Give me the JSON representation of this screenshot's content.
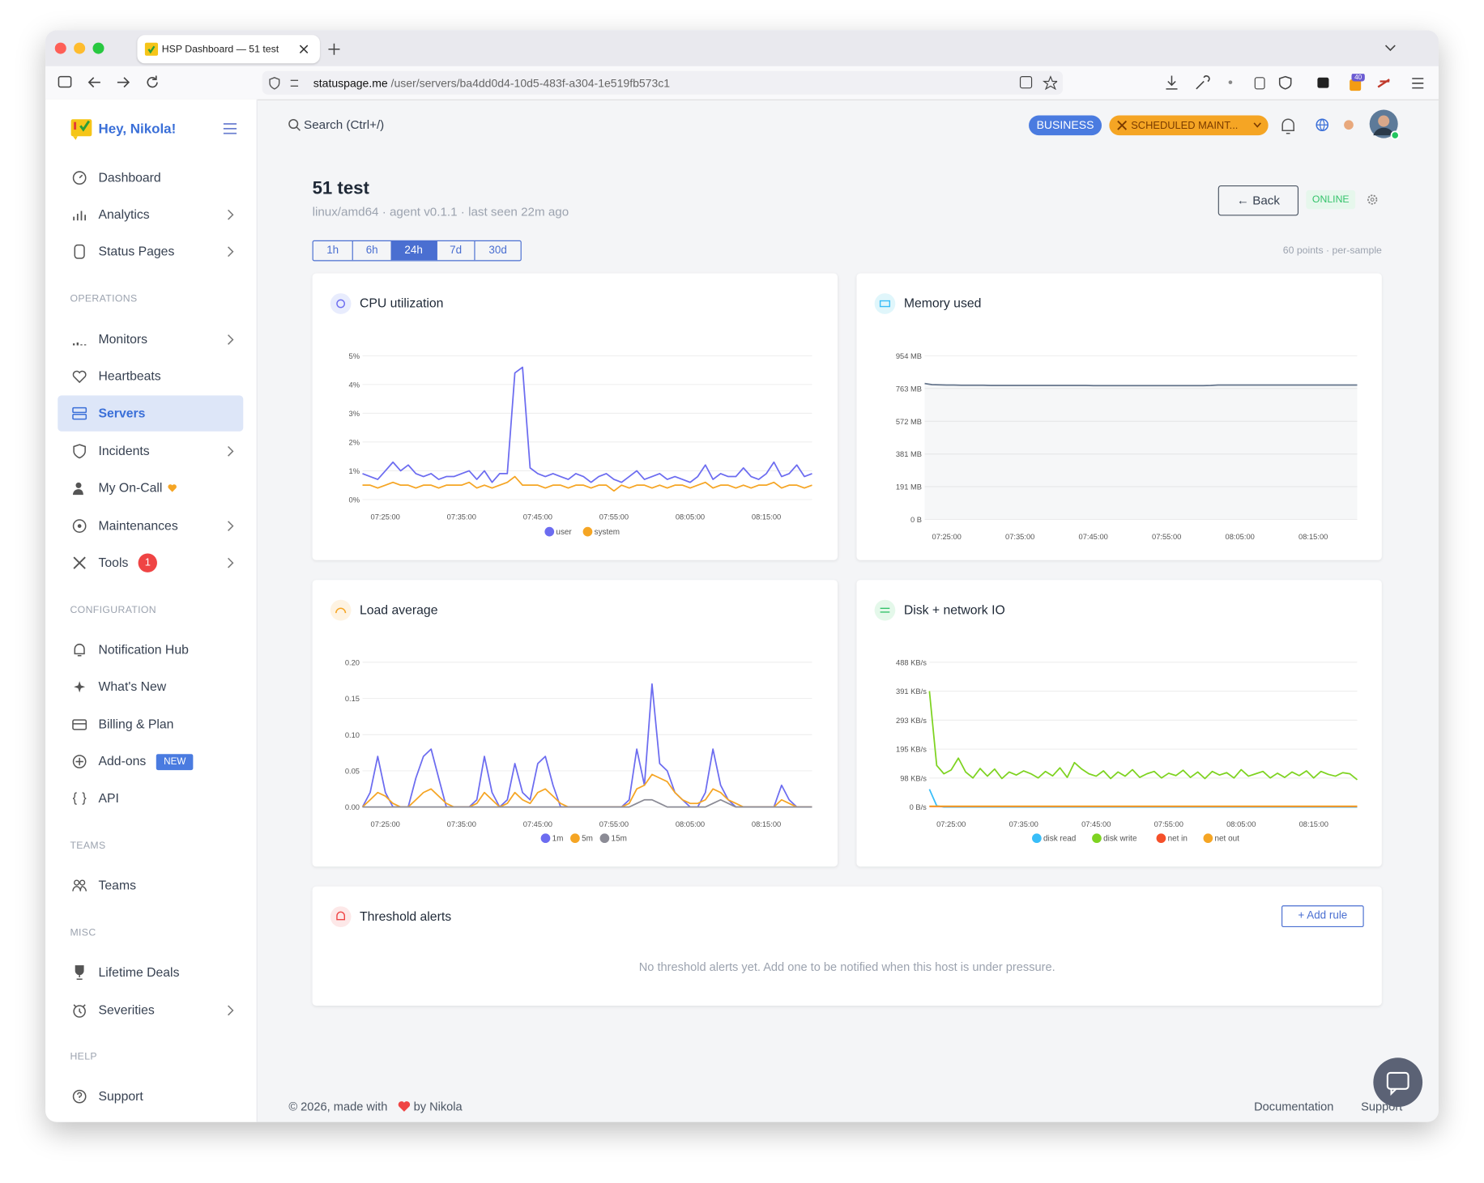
{
  "browser": {
    "tab_title": "HSP Dashboard — 51 test",
    "url_host": "statuspage.me",
    "url_path": "/user/servers/ba4dd0d4-10d5-483f-a304-1e519fb573c1",
    "extension_badge": "40"
  },
  "sidebar": {
    "greeting": "Hey, Nikola!",
    "groups": [
      {
        "items": [
          {
            "label": "Dashboard"
          },
          {
            "label": "Analytics"
          },
          {
            "label": "Status Pages"
          }
        ]
      },
      {
        "heading": "OPERATIONS",
        "items": [
          {
            "label": "Monitors"
          },
          {
            "label": "Heartbeats"
          },
          {
            "label": "Servers"
          },
          {
            "label": "Incidents"
          },
          {
            "label": "My On-Call"
          },
          {
            "label": "Maintenances"
          },
          {
            "label": "Tools",
            "badge": "1"
          }
        ]
      },
      {
        "heading": "CONFIGURATION",
        "items": [
          {
            "label": "Notification Hub"
          },
          {
            "label": "What's New"
          },
          {
            "label": "Billing & Plan"
          },
          {
            "label": "Add-ons",
            "badge": "NEW"
          },
          {
            "label": "API"
          }
        ]
      },
      {
        "heading": "TEAMS",
        "items": [
          {
            "label": "Teams"
          }
        ]
      },
      {
        "heading": "MISC",
        "items": [
          {
            "label": "Lifetime Deals"
          },
          {
            "label": "Severities"
          }
        ]
      },
      {
        "heading": "HELP",
        "items": [
          {
            "label": "Support"
          }
        ]
      }
    ]
  },
  "header": {
    "search": "Search (Ctrl+/)",
    "plan_badge": "BUSINESS",
    "maintenance_badge": "SCHEDULED MAINT..."
  },
  "page": {
    "title": "51 test",
    "subtitle": "linux/amd64 · agent v0.1.1 · last seen 22m ago",
    "back_button": "← Back",
    "status": "ONLINE",
    "ranges": [
      "1h",
      "6h",
      "24h",
      "7d",
      "30d"
    ],
    "active_range": "24h",
    "points_note": "60 points · per-sample",
    "threshold": {
      "title": "Threshold alerts",
      "add_button": "+ Add rule",
      "empty": "No threshold alerts yet. Add one to be notified when this host is under pressure."
    }
  },
  "footer": {
    "credit_prefix": "© 2026, made with",
    "credit_suffix": "by Nikola",
    "links": [
      "Documentation",
      "Support"
    ]
  },
  "chart_data": [
    {
      "type": "line",
      "title": "CPU utilization",
      "legend": "bottom",
      "grid": true,
      "categories": [
        null,
        null,
        null,
        "07:25:00",
        null,
        null,
        null,
        null,
        null,
        null,
        null,
        null,
        null,
        "07:35:00",
        null,
        null,
        null,
        null,
        null,
        null,
        null,
        null,
        null,
        "07:45:00",
        null,
        null,
        null,
        null,
        null,
        null,
        null,
        null,
        null,
        "07:55:00",
        null,
        null,
        null,
        null,
        null,
        null,
        null,
        null,
        null,
        "08:05:00",
        null,
        null,
        null,
        null,
        null,
        null,
        null,
        null,
        null,
        "08:15:00",
        null,
        null,
        null,
        null,
        null,
        null
      ],
      "ylim": [
        0,
        5
      ],
      "yticks": [
        {
          "value": 0,
          "label": "0%"
        },
        {
          "value": 1,
          "label": "1%"
        },
        {
          "value": 2,
          "label": "2%"
        },
        {
          "value": 3,
          "label": "3%"
        },
        {
          "value": 4,
          "label": "4%"
        },
        {
          "value": 5,
          "label": "5%"
        }
      ],
      "series": [
        {
          "name": "user",
          "color": "#6c6cf0",
          "values": [
            0.9,
            0.8,
            0.7,
            1.0,
            1.3,
            1.0,
            1.2,
            0.9,
            0.8,
            0.9,
            0.7,
            0.8,
            0.8,
            0.9,
            1.0,
            0.7,
            1.0,
            0.6,
            0.9,
            0.9,
            4.4,
            4.6,
            1.1,
            0.9,
            0.8,
            0.9,
            0.8,
            0.7,
            0.9,
            0.8,
            0.6,
            0.8,
            0.9,
            0.7,
            0.6,
            0.8,
            1.0,
            0.7,
            0.8,
            0.9,
            0.7,
            0.8,
            0.7,
            0.6,
            0.8,
            1.2,
            0.7,
            0.9,
            0.8,
            0.8,
            1.1,
            0.8,
            0.7,
            0.9,
            1.3,
            0.8,
            0.9,
            1.2,
            0.8,
            0.9
          ]
        },
        {
          "name": "system",
          "color": "#f5a524",
          "values": [
            0.5,
            0.5,
            0.4,
            0.5,
            0.6,
            0.5,
            0.5,
            0.4,
            0.5,
            0.5,
            0.4,
            0.5,
            0.5,
            0.5,
            0.6,
            0.4,
            0.5,
            0.4,
            0.5,
            0.6,
            0.8,
            0.5,
            0.5,
            0.5,
            0.4,
            0.5,
            0.5,
            0.4,
            0.5,
            0.5,
            0.4,
            0.5,
            0.5,
            0.3,
            0.5,
            0.4,
            0.5,
            0.5,
            0.4,
            0.5,
            0.4,
            0.5,
            0.5,
            0.4,
            0.5,
            0.6,
            0.4,
            0.5,
            0.5,
            0.4,
            0.5,
            0.4,
            0.5,
            0.5,
            0.6,
            0.4,
            0.5,
            0.5,
            0.4,
            0.5
          ]
        }
      ]
    },
    {
      "type": "area",
      "title": "Memory used",
      "grid": true,
      "categories": [
        null,
        null,
        null,
        "07:25:00",
        null,
        null,
        null,
        null,
        null,
        null,
        null,
        null,
        null,
        "07:35:00",
        null,
        null,
        null,
        null,
        null,
        null,
        null,
        null,
        null,
        "07:45:00",
        null,
        null,
        null,
        null,
        null,
        null,
        null,
        null,
        null,
        "07:55:00",
        null,
        null,
        null,
        null,
        null,
        null,
        null,
        null,
        null,
        "08:05:00",
        null,
        null,
        null,
        null,
        null,
        null,
        null,
        null,
        null,
        "08:15:00",
        null,
        null,
        null,
        null,
        null,
        null
      ],
      "ylim": [
        0,
        954
      ],
      "yticks": [
        {
          "value": 0,
          "label": "0 B"
        },
        {
          "value": 191,
          "label": "191 MB"
        },
        {
          "value": 381,
          "label": "381 MB"
        },
        {
          "value": 572,
          "label": "572 MB"
        },
        {
          "value": 763,
          "label": "763 MB"
        },
        {
          "value": 954,
          "label": "954 MB"
        }
      ],
      "series": [
        {
          "color": "#64748b",
          "values": [
            792,
            786,
            784,
            783,
            783,
            782,
            782,
            782,
            782,
            781,
            781,
            781,
            781,
            781,
            781,
            781,
            781,
            781,
            781,
            781,
            781,
            781,
            781,
            780,
            780,
            780,
            780,
            780,
            780,
            780,
            780,
            780,
            780,
            780,
            780,
            780,
            780,
            780,
            780,
            781,
            783,
            783,
            783,
            783,
            783,
            783,
            783,
            783,
            783,
            783,
            783,
            783,
            783,
            783,
            783,
            783,
            783,
            783,
            783,
            783
          ]
        }
      ]
    },
    {
      "type": "line",
      "title": "Load average",
      "legend": "bottom",
      "grid": true,
      "categories": [
        null,
        null,
        null,
        "07:25:00",
        null,
        null,
        null,
        null,
        null,
        null,
        null,
        null,
        null,
        "07:35:00",
        null,
        null,
        null,
        null,
        null,
        null,
        null,
        null,
        null,
        "07:45:00",
        null,
        null,
        null,
        null,
        null,
        null,
        null,
        null,
        null,
        "07:55:00",
        null,
        null,
        null,
        null,
        null,
        null,
        null,
        null,
        null,
        "08:05:00",
        null,
        null,
        null,
        null,
        null,
        null,
        null,
        null,
        null,
        "08:15:00",
        null,
        null,
        null,
        null,
        null,
        null
      ],
      "ylim": [
        0,
        0.2
      ],
      "yticks": [
        {
          "value": 0,
          "label": "0.00"
        },
        0.05,
        {
          "value": 0.1,
          "label": "0.10"
        },
        0.15,
        {
          "value": 0.2,
          "label": "0.20"
        }
      ],
      "series": [
        {
          "name": "1m",
          "color": "#6c6cf0",
          "values": [
            0,
            0.02,
            0.07,
            0.02,
            0,
            0,
            0,
            0.04,
            0.07,
            0.08,
            0.04,
            0,
            0,
            0,
            0,
            0.01,
            0.07,
            0.02,
            0,
            0.01,
            0.06,
            0.02,
            0.01,
            0.06,
            0.07,
            0.03,
            0,
            0,
            0,
            0,
            0,
            0,
            0,
            0,
            0,
            0.01,
            0.08,
            0.03,
            0.17,
            0.06,
            0.05,
            0.02,
            0.01,
            0,
            0,
            0.02,
            0.08,
            0.03,
            0.01,
            0,
            0,
            0,
            0,
            0,
            0,
            0.03,
            0.01,
            0,
            0,
            0
          ]
        },
        {
          "name": "5m",
          "color": "#f5a524",
          "values": [
            0,
            0.01,
            0.02,
            0.015,
            0.005,
            0,
            0,
            0.01,
            0.02,
            0.025,
            0.015,
            0.005,
            0,
            0,
            0,
            0.005,
            0.02,
            0.01,
            0,
            0.005,
            0.02,
            0.01,
            0.005,
            0.02,
            0.025,
            0.015,
            0.005,
            0,
            0,
            0,
            0,
            0,
            0,
            0,
            0,
            0.005,
            0.025,
            0.03,
            0.045,
            0.04,
            0.035,
            0.02,
            0.01,
            0.005,
            0.005,
            0.01,
            0.025,
            0.02,
            0.01,
            0.005,
            0,
            0,
            0,
            0,
            0,
            0.01,
            0.005,
            0,
            0,
            0
          ]
        },
        {
          "name": "15m",
          "color": "#8b8b95",
          "values": [
            0,
            0,
            0,
            0,
            0,
            0,
            0,
            0,
            0,
            0,
            0,
            0,
            0,
            0,
            0,
            0,
            0,
            0,
            0,
            0,
            0,
            0,
            0,
            0,
            0,
            0,
            0,
            0,
            0,
            0,
            0,
            0,
            0,
            0,
            0,
            0,
            0.005,
            0.01,
            0.01,
            0.005,
            0,
            0,
            0,
            0,
            0,
            0,
            0.005,
            0.01,
            0.005,
            0,
            0,
            0,
            0,
            0,
            0,
            0,
            0,
            0,
            0,
            0
          ]
        }
      ]
    },
    {
      "type": "line",
      "title": "Disk + network IO",
      "legend": "bottom",
      "grid": true,
      "categories": [
        null,
        null,
        null,
        "07:25:00",
        null,
        null,
        null,
        null,
        null,
        null,
        null,
        null,
        null,
        "07:35:00",
        null,
        null,
        null,
        null,
        null,
        null,
        null,
        null,
        null,
        "07:45:00",
        null,
        null,
        null,
        null,
        null,
        null,
        null,
        null,
        null,
        "07:55:00",
        null,
        null,
        null,
        null,
        null,
        null,
        null,
        null,
        null,
        "08:05:00",
        null,
        null,
        null,
        null,
        null,
        null,
        null,
        null,
        null,
        "08:15:00",
        null,
        null,
        null,
        null,
        null,
        null
      ],
      "ylim": [
        0,
        488.3
      ],
      "yticks": [
        {
          "value": 0,
          "label": "0 B/s"
        },
        {
          "value": 97.7,
          "label": "98 KB/s"
        },
        {
          "value": 195.3,
          "label": "195 KB/s"
        },
        {
          "value": 293,
          "label": "293 KB/s"
        },
        {
          "value": 390.6,
          "label": "391 KB/s"
        },
        {
          "value": 488.3,
          "label": "488 KB/s"
        }
      ],
      "series": [
        {
          "name": "disk read",
          "color": "#38bdf8",
          "values": [
            60,
            4,
            0,
            0,
            0,
            0,
            0,
            0,
            0,
            0,
            0,
            0,
            0,
            0,
            0,
            0,
            0,
            0,
            0,
            0,
            0,
            0,
            0,
            0,
            0,
            0,
            0,
            0,
            0,
            0,
            0,
            0,
            0,
            0,
            0,
            0,
            0,
            0,
            0,
            0,
            0,
            0,
            0,
            0,
            0,
            0,
            0,
            0,
            0,
            0,
            0,
            0,
            0,
            0,
            0,
            0,
            0,
            0,
            0,
            0
          ]
        },
        {
          "name": "disk write",
          "color": "#7ed321",
          "values": [
            391,
            140,
            112,
            125,
            165,
            118,
            98,
            130,
            104,
            128,
            96,
            118,
            108,
            122,
            112,
            98,
            120,
            105,
            132,
            100,
            150,
            128,
            112,
            104,
            122,
            96,
            118,
            104,
            126,
            100,
            112,
            120,
            98,
            114,
            106,
            124,
            100,
            118,
            96,
            120,
            108,
            116,
            98,
            126,
            104,
            112,
            120,
            98,
            114,
            100,
            118,
            106,
            122,
            98,
            120,
            110,
            104,
            116,
            112,
            92
          ]
        },
        {
          "name": "net in",
          "color": "#f5502a",
          "values": [
            2,
            2,
            2,
            2,
            2,
            2,
            2,
            2,
            2,
            2,
            2,
            2,
            2,
            2,
            2,
            2,
            2,
            2,
            2,
            2,
            2,
            2,
            2,
            2,
            2,
            2,
            2,
            2,
            2,
            2,
            2,
            2,
            2,
            2,
            2,
            2,
            2,
            2,
            2,
            2,
            2,
            2,
            2,
            2,
            2,
            2,
            2,
            2,
            2,
            2,
            2,
            2,
            2,
            2,
            2,
            2,
            2,
            2,
            2,
            2
          ]
        },
        {
          "name": "net out",
          "color": "#f5a524",
          "values": [
            3,
            3,
            3,
            3,
            3,
            3,
            3,
            3,
            3,
            3,
            3,
            3,
            3,
            3,
            3,
            3,
            3,
            3,
            3,
            3,
            3,
            3,
            3,
            3,
            3,
            3,
            3,
            3,
            3,
            3,
            3,
            3,
            3,
            3,
            3,
            3,
            3,
            3,
            3,
            3,
            3,
            3,
            3,
            3,
            3,
            3,
            3,
            3,
            3,
            3,
            3,
            3,
            3,
            3,
            3,
            3,
            3,
            3,
            3,
            3
          ]
        }
      ]
    }
  ]
}
